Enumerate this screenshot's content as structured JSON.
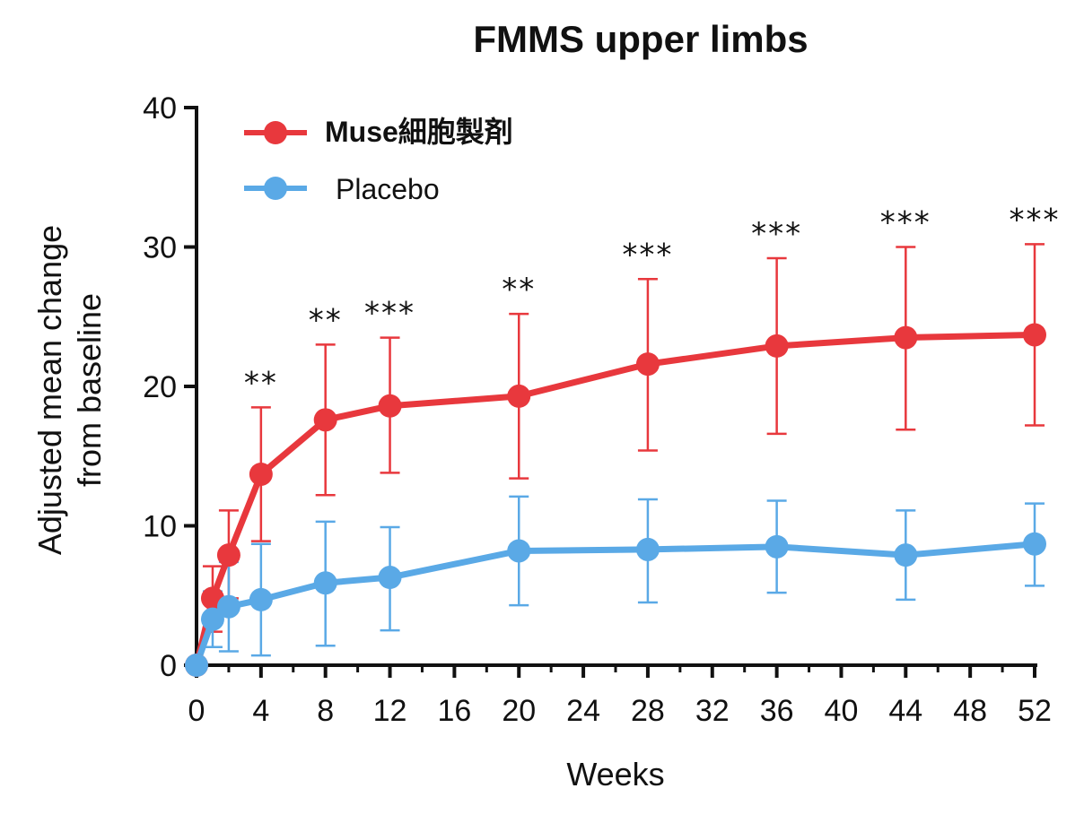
{
  "chart_data": {
    "type": "line",
    "title": "FMMS upper limbs",
    "xlabel": "Weeks",
    "ylabel_line1": "Adjusted mean change",
    "ylabel_line2": "from baseline",
    "xlim": [
      0,
      52
    ],
    "ylim": [
      0,
      40
    ],
    "xticks": [
      0,
      4,
      8,
      12,
      16,
      20,
      24,
      28,
      32,
      36,
      40,
      44,
      48,
      52
    ],
    "yticks": [
      0,
      10,
      20,
      30,
      40
    ],
    "grid": false,
    "legend_position": "top-left",
    "series": [
      {
        "name": "Muse細胞製剤",
        "color": "#e8383d",
        "x": [
          0,
          1,
          2,
          4,
          8,
          12,
          20,
          28,
          36,
          44,
          52
        ],
        "y": [
          0,
          4.8,
          7.9,
          13.7,
          17.6,
          18.6,
          19.3,
          21.6,
          22.9,
          23.5,
          23.7
        ],
        "err_low": [
          0,
          2.4,
          4.8,
          8.9,
          12.2,
          13.8,
          13.4,
          15.4,
          16.6,
          16.9,
          17.2
        ],
        "err_high": [
          0,
          7.1,
          11.1,
          18.5,
          23.0,
          23.5,
          25.2,
          27.7,
          29.2,
          30.0,
          30.2
        ]
      },
      {
        "name": "Placebo",
        "color": "#5aa9e6",
        "x": [
          0,
          1,
          2,
          4,
          8,
          12,
          20,
          28,
          36,
          44,
          52
        ],
        "y": [
          0,
          3.3,
          4.2,
          4.7,
          5.9,
          6.3,
          8.2,
          8.3,
          8.5,
          7.9,
          8.7
        ],
        "err_low": [
          0,
          1.3,
          1.0,
          0.7,
          1.4,
          2.5,
          4.3,
          4.5,
          5.2,
          4.7,
          5.7
        ],
        "err_high": [
          0,
          5.3,
          7.4,
          8.7,
          10.3,
          9.9,
          12.1,
          11.9,
          11.8,
          11.1,
          11.6
        ]
      }
    ],
    "annotations": [
      {
        "x": 4,
        "text": "**"
      },
      {
        "x": 8,
        "text": "**"
      },
      {
        "x": 12,
        "text": "***"
      },
      {
        "x": 20,
        "text": "**"
      },
      {
        "x": 28,
        "text": "***"
      },
      {
        "x": 36,
        "text": "***"
      },
      {
        "x": 44,
        "text": "***"
      },
      {
        "x": 52,
        "text": "***"
      }
    ]
  }
}
